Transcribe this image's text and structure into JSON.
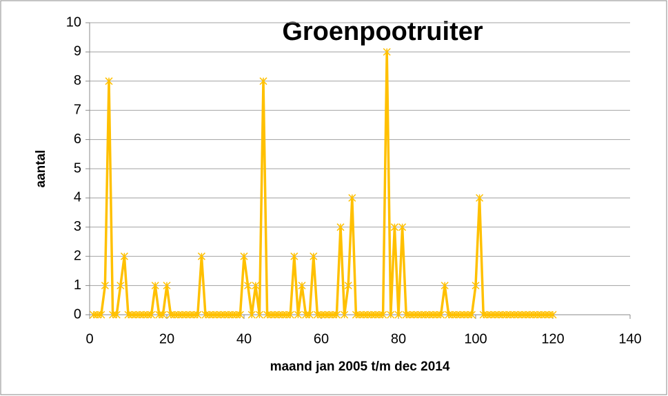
{
  "chart_data": {
    "type": "line",
    "title": "Groenpootruiter",
    "xlabel": "maand jan 2005 t/m dec 2014",
    "ylabel": "aantal",
    "x": [
      1,
      2,
      3,
      4,
      5,
      6,
      7,
      8,
      9,
      10,
      11,
      12,
      13,
      14,
      15,
      16,
      17,
      18,
      19,
      20,
      21,
      22,
      23,
      24,
      25,
      26,
      27,
      28,
      29,
      30,
      31,
      32,
      33,
      34,
      35,
      36,
      37,
      38,
      39,
      40,
      41,
      42,
      43,
      44,
      45,
      46,
      47,
      48,
      49,
      50,
      51,
      52,
      53,
      54,
      55,
      56,
      57,
      58,
      59,
      60,
      61,
      62,
      63,
      64,
      65,
      66,
      67,
      68,
      69,
      70,
      71,
      72,
      73,
      74,
      75,
      76,
      77,
      78,
      79,
      80,
      81,
      82,
      83,
      84,
      85,
      86,
      87,
      88,
      89,
      90,
      91,
      92,
      93,
      94,
      95,
      96,
      97,
      98,
      99,
      100,
      101,
      102,
      103,
      104,
      105,
      106,
      107,
      108,
      109,
      110,
      111,
      112,
      113,
      114,
      115,
      116,
      117,
      118,
      119,
      120
    ],
    "values": [
      0,
      0,
      0,
      1,
      8,
      0,
      0,
      1,
      2,
      0,
      0,
      0,
      0,
      0,
      0,
      0,
      1,
      0,
      0,
      1,
      0,
      0,
      0,
      0,
      0,
      0,
      0,
      0,
      2,
      0,
      0,
      0,
      0,
      0,
      0,
      0,
      0,
      0,
      0,
      2,
      1,
      0,
      1,
      0,
      8,
      0,
      0,
      0,
      0,
      0,
      0,
      0,
      2,
      0,
      1,
      0,
      0,
      2,
      0,
      0,
      0,
      0,
      0,
      0,
      3,
      0,
      1,
      4,
      0,
      0,
      0,
      0,
      0,
      0,
      0,
      0,
      9,
      0,
      3,
      0,
      3,
      0,
      0,
      0,
      0,
      0,
      0,
      0,
      0,
      0,
      0,
      1,
      0,
      0,
      0,
      0,
      0,
      0,
      0,
      1,
      4,
      0,
      0,
      0,
      0,
      0,
      0,
      0,
      0,
      0,
      0,
      0,
      0,
      0,
      0,
      0,
      0,
      0,
      0,
      0
    ],
    "color": "#ffc000",
    "xlim": [
      0,
      140
    ],
    "xticks": [
      0,
      20,
      40,
      60,
      80,
      100,
      120,
      140
    ],
    "ylim": [
      0,
      10
    ],
    "yticks": [
      0,
      1,
      2,
      3,
      4,
      5,
      6,
      7,
      8,
      9,
      10
    ],
    "grid": true
  }
}
